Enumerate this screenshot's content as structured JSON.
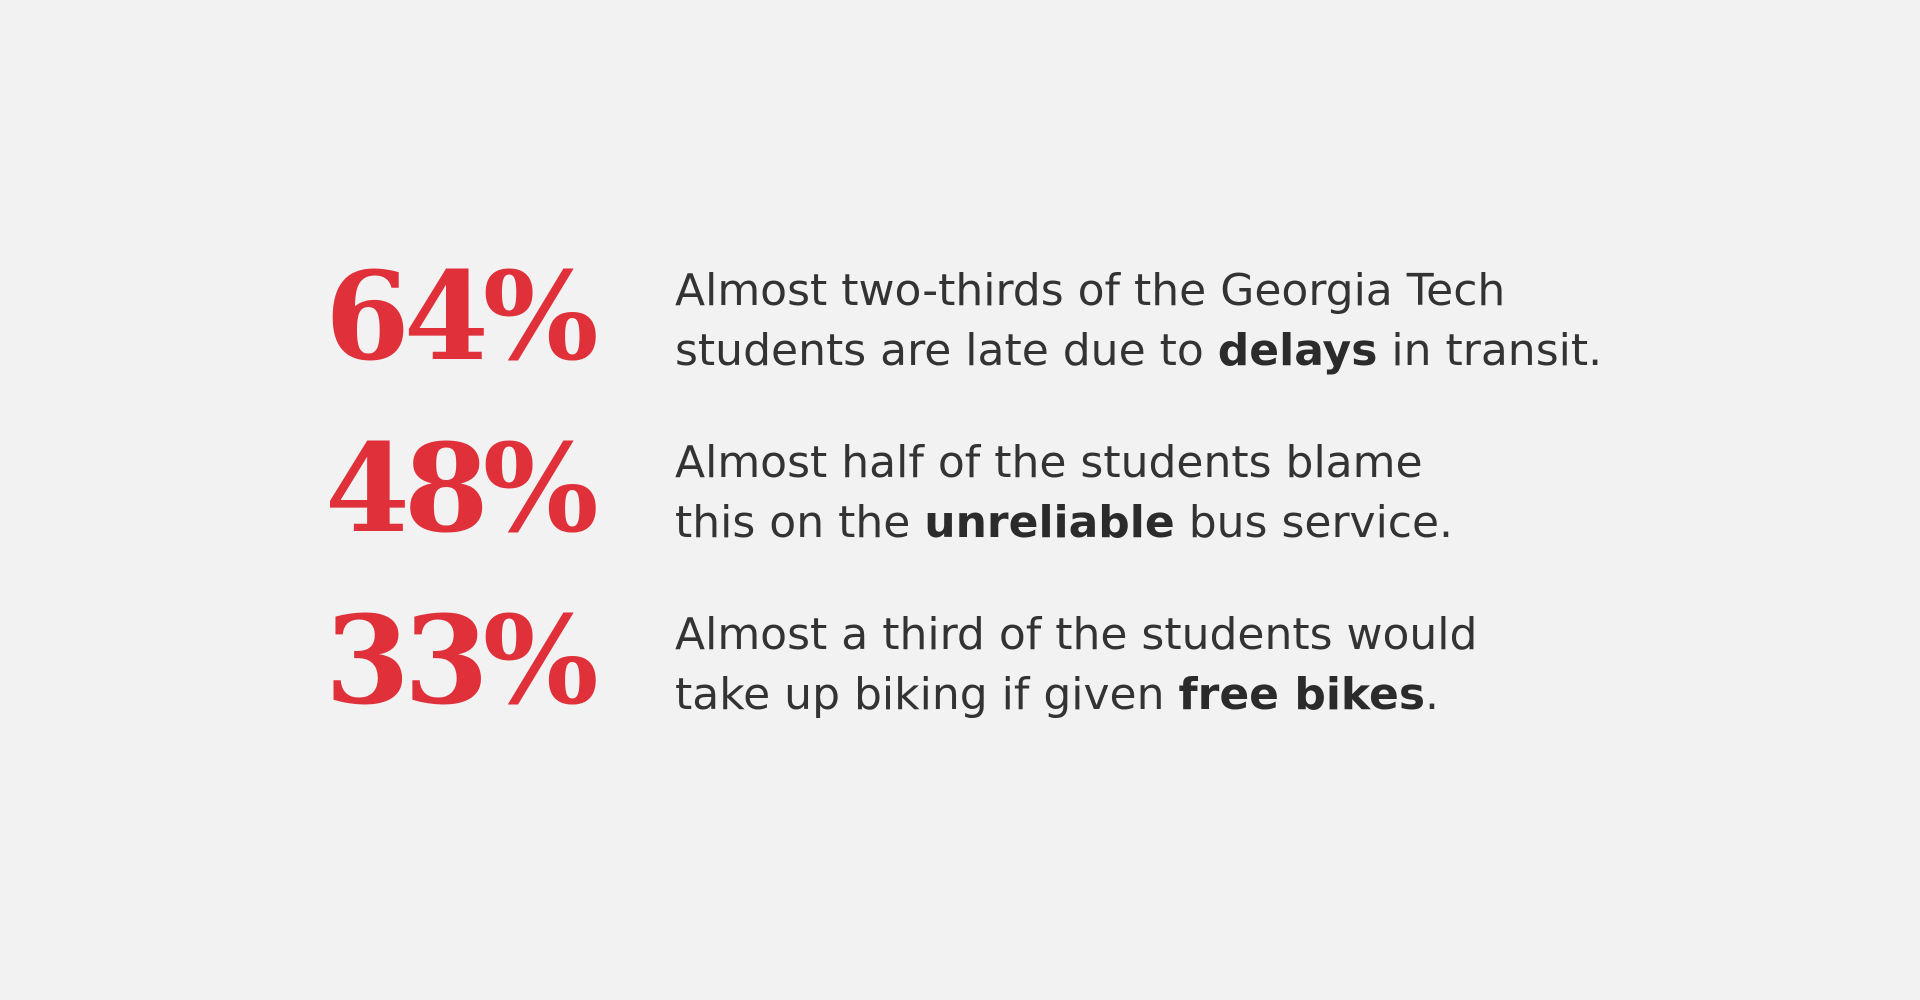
{
  "accent_color": "#e0303a",
  "text_color": "#333333",
  "background_color": "#f2f2f2",
  "stats": [
    {
      "value": "64%",
      "line1": "Almost two-thirds of the Georgia Tech",
      "line2_before": "students are late due to ",
      "line2_emphasis": "delays",
      "line2_after": " in transit."
    },
    {
      "value": "48%",
      "line1": "Almost half of the students blame",
      "line2_before": "this on the ",
      "line2_emphasis": "unreliable",
      "line2_after": " bus service."
    },
    {
      "value": "33%",
      "line1": "Almost a third of the students would",
      "line2_before": "take up biking if given ",
      "line2_emphasis": "free bikes",
      "line2_after": "."
    }
  ]
}
